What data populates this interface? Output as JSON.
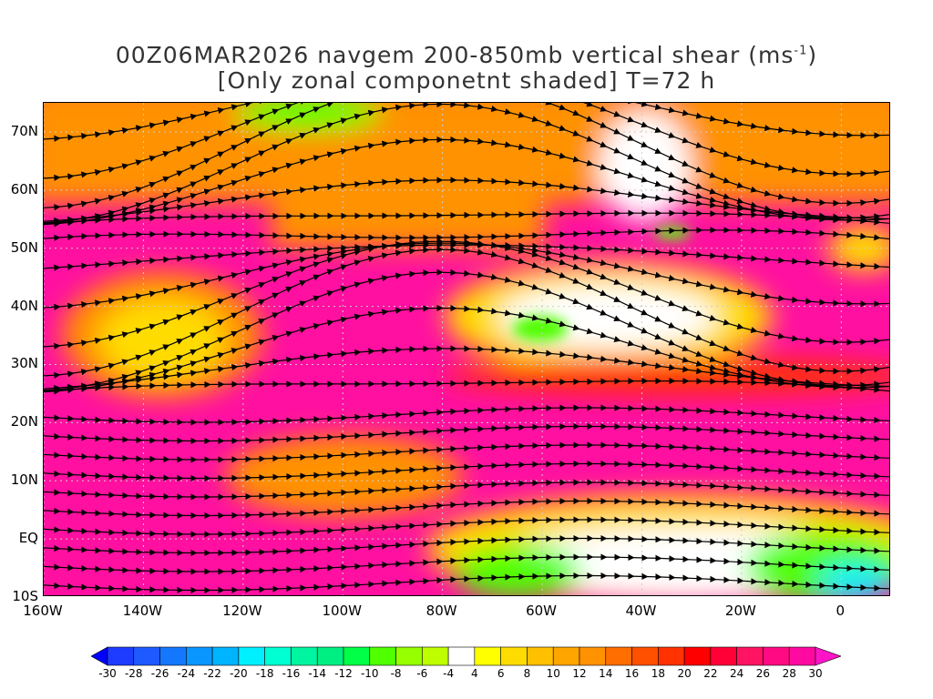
{
  "title": {
    "line1_main": "00Z06MAR2026 navgem 200-850mb vertical shear (ms",
    "line1_sup": "-1",
    "line1_end": ")",
    "line2": "[Only zonal componetnt shaded] T=72 h"
  },
  "x_axis": {
    "labels": [
      "160W",
      "140W",
      "120W",
      "100W",
      "80W",
      "60W",
      "40W",
      "20W",
      "0"
    ],
    "lon": [
      -160,
      -140,
      -120,
      -100,
      -80,
      -60,
      -40,
      -20,
      0
    ],
    "range": [
      -160,
      10
    ]
  },
  "y_axis": {
    "labels": [
      "70N",
      "60N",
      "50N",
      "40N",
      "30N",
      "20N",
      "10N",
      "EQ",
      "10S"
    ],
    "lat": [
      70,
      60,
      50,
      40,
      30,
      20,
      10,
      0,
      -10
    ],
    "range": [
      -10,
      75
    ]
  },
  "colorbar": {
    "labels": [
      "-30",
      "-28",
      "-26",
      "-24",
      "-22",
      "-20",
      "-18",
      "-16",
      "-14",
      "-12",
      "-10",
      "-8",
      "-6",
      "-4",
      "4",
      "6",
      "8",
      "10",
      "12",
      "14",
      "16",
      "18",
      "20",
      "22",
      "24",
      "26",
      "28",
      "30"
    ],
    "under_color": "#0000ff",
    "over_color": "#ff14c8",
    "colors": [
      "#1e3cff",
      "#1e5aff",
      "#1478ff",
      "#0a96ff",
      "#00b4ff",
      "#00f0ff",
      "#00ffd2",
      "#00f5a0",
      "#00ef82",
      "#00ff46",
      "#50ff00",
      "#96ff00",
      "#beff00",
      "#ffffff",
      "#ffff00",
      "#ffdc00",
      "#ffc000",
      "#ffa500",
      "#ff9200",
      "#ff6e00",
      "#ff5000",
      "#ff3200",
      "#ff0000",
      "#ff0037",
      "#ff1464",
      "#ff0a82",
      "#ff0aa0"
    ]
  },
  "map_colors": {
    "magenta": "#ff10a0",
    "pink": "#ff1464",
    "red": "#ff3200",
    "orange": "#ff9200",
    "yellow": "#ffdc00",
    "white": "#ffffff",
    "green": "#50ff00",
    "cyan": "#00f0ff",
    "streamline": "#000000",
    "contour": "#a020f0"
  }
}
